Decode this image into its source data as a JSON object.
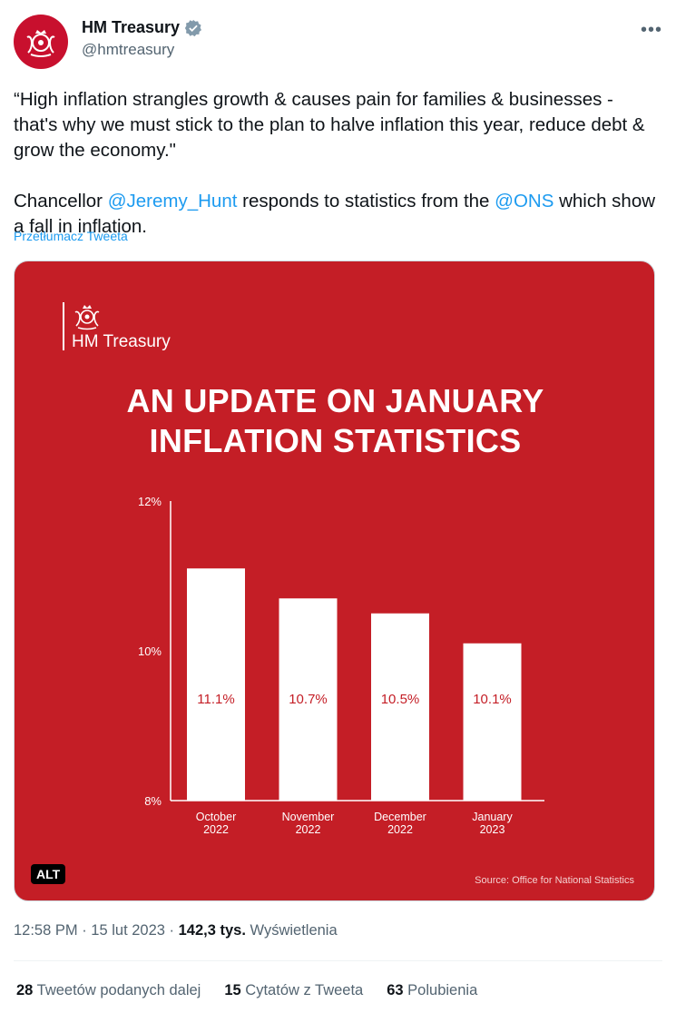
{
  "account": {
    "display_name": "HM Treasury",
    "handle": "@hmtreasury"
  },
  "tweet": {
    "quote": "“High inflation strangles growth & causes pain for families & businesses - that's why we must stick to the plan to halve inflation this year, reduce debt & grow the economy.\"",
    "line2_prefix": "Chancellor ",
    "mention1": "@Jeremy_Hunt",
    "line2_middle": " responds to statistics from the ",
    "mention2": "@ONS",
    "line2_suffix": " which show a fall in inflation.",
    "translate_label": "Przetłumacz Tweeta"
  },
  "media": {
    "logo_text": "HM Treasury",
    "title_line1": "AN UPDATE ON JANUARY",
    "title_line2": "INFLATION STATISTICS",
    "source": "Source: Office for National Statistics",
    "alt_label": "ALT",
    "background_color": "#c41e26"
  },
  "chart_data": {
    "type": "bar",
    "categories": [
      [
        "October",
        "2022"
      ],
      [
        "November",
        "2022"
      ],
      [
        "December",
        "2022"
      ],
      [
        "January",
        "2023"
      ]
    ],
    "values": [
      11.1,
      10.7,
      10.5,
      10.1
    ],
    "value_labels": [
      "11.1%",
      "10.7%",
      "10.5%",
      "10.1%"
    ],
    "ylim": [
      8,
      12
    ],
    "yticks": [
      12,
      10,
      8
    ],
    "ytick_labels": [
      "12%",
      "10%",
      "8%"
    ],
    "grid": false
  },
  "meta": {
    "time": "12:58 PM",
    "sep1": " · ",
    "date": "15 lut 2023",
    "sep2": " · ",
    "views_count": "142,3 tys.",
    "views_label": " Wyświetlenia"
  },
  "stats": {
    "retweets_count": "28",
    "retweets_label": " Tweetów podanych dalej",
    "quotes_count": "15",
    "quotes_label": " Cytatów z Tweeta",
    "likes_count": "63",
    "likes_label": " Polubienia"
  },
  "colors": {
    "link": "#1d9bf0",
    "secondary_text": "#536471",
    "brand_red": "#c41e26"
  }
}
